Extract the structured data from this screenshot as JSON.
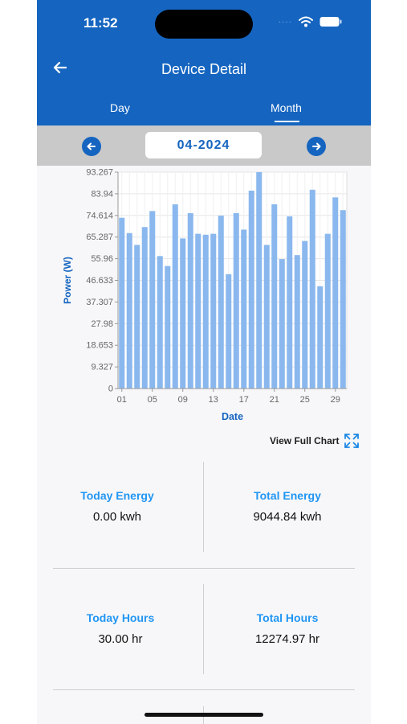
{
  "status_bar": {
    "time": "11:52",
    "signal_dots": "····"
  },
  "header": {
    "title": "Device Detail"
  },
  "tabs": [
    {
      "label": "Day"
    },
    {
      "label": "Month"
    }
  ],
  "date_selector": {
    "value": "04-2024"
  },
  "chart_data": {
    "type": "bar",
    "ylabel": "Power (W)",
    "xlabel": "Date",
    "ylim": [
      0,
      93.267
    ],
    "yticks": [
      "0",
      "9.327",
      "18.653",
      "27.98",
      "37.307",
      "46.633",
      "55.96",
      "65.287",
      "74.614",
      "83.94",
      "93.267"
    ],
    "xticks": [
      "01",
      "05",
      "09",
      "13",
      "17",
      "21",
      "25",
      "29"
    ],
    "categories": [
      "01",
      "02",
      "03",
      "04",
      "05",
      "06",
      "07",
      "08",
      "09",
      "10",
      "11",
      "12",
      "13",
      "14",
      "15",
      "16",
      "17",
      "18",
      "19",
      "20",
      "21",
      "22",
      "23",
      "24",
      "25",
      "26",
      "27",
      "28",
      "29",
      "30"
    ],
    "values": [
      73.6,
      67.0,
      61.9,
      69.6,
      76.5,
      57.1,
      52.8,
      79.4,
      64.7,
      75.6,
      66.7,
      66.3,
      66.7,
      74.5,
      49.3,
      75.6,
      68.5,
      85.3,
      93.3,
      61.9,
      79.4,
      55.8,
      74.2,
      57.5,
      63.6,
      85.7,
      44.1,
      66.7,
      82.4,
      76.9
    ],
    "bar_color": "#8ab8ee",
    "grid": true
  },
  "view_full_chart": {
    "label": "View Full Chart"
  },
  "stats": {
    "today_energy": {
      "label": "Today Energy",
      "value": "0.00 kwh"
    },
    "total_energy": {
      "label": "Total Energy",
      "value": "9044.84 kwh"
    },
    "today_hours": {
      "label": "Today Hours",
      "value": "30.00 hr"
    },
    "total_hours": {
      "label": "Total Hours",
      "value": "12274.97 hr"
    }
  },
  "colors": {
    "primary": "#1565c0",
    "accent": "#2196f3",
    "bar": "#8ab8ee"
  }
}
